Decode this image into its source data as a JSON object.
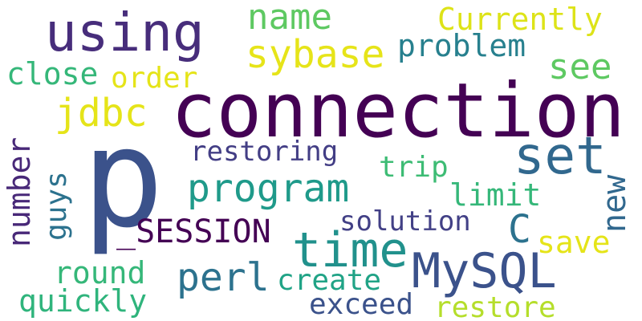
{
  "words": [
    {
      "text": "connection",
      "color": "#440154"
    },
    {
      "text": "p",
      "color": "#3b528b"
    },
    {
      "text": "using",
      "color": "#472d7b"
    },
    {
      "text": "set",
      "color": "#31688e"
    },
    {
      "text": "time",
      "color": "#21918c"
    },
    {
      "text": "MySQL",
      "color": "#3b528b"
    },
    {
      "text": "program",
      "color": "#1f9a8a"
    },
    {
      "text": "sybase",
      "color": "#e6e419"
    },
    {
      "text": "name",
      "color": "#5ec962"
    },
    {
      "text": "perl",
      "color": "#2c728e"
    },
    {
      "text": "jdbc",
      "color": "#e5e419"
    },
    {
      "text": "Currently",
      "color": "#dde318"
    },
    {
      "text": "problem",
      "color": "#27808e"
    },
    {
      "text": "see",
      "color": "#5ec962"
    },
    {
      "text": "close",
      "color": "#35b779"
    },
    {
      "text": "order",
      "color": "#e5e419"
    },
    {
      "text": "restoring",
      "color": "#433e85"
    },
    {
      "text": "C",
      "color": "#2c728e"
    },
    {
      "text": "_SESSION",
      "color": "#440154"
    },
    {
      "text": "solution",
      "color": "#424086"
    },
    {
      "text": "trip",
      "color": "#3dbc74"
    },
    {
      "text": "limit",
      "color": "#35b779"
    },
    {
      "text": "save",
      "color": "#e5e419"
    },
    {
      "text": "round",
      "color": "#35b779"
    },
    {
      "text": "create",
      "color": "#20a386"
    },
    {
      "text": "quickly",
      "color": "#2fb47c"
    },
    {
      "text": "exceed",
      "color": "#3b528b"
    },
    {
      "text": "restore",
      "color": "#b5de2b"
    },
    {
      "text": "number",
      "color": "#482878"
    },
    {
      "text": "guys",
      "color": "#2c728e"
    },
    {
      "text": "new",
      "color": "#31688e"
    }
  ]
}
